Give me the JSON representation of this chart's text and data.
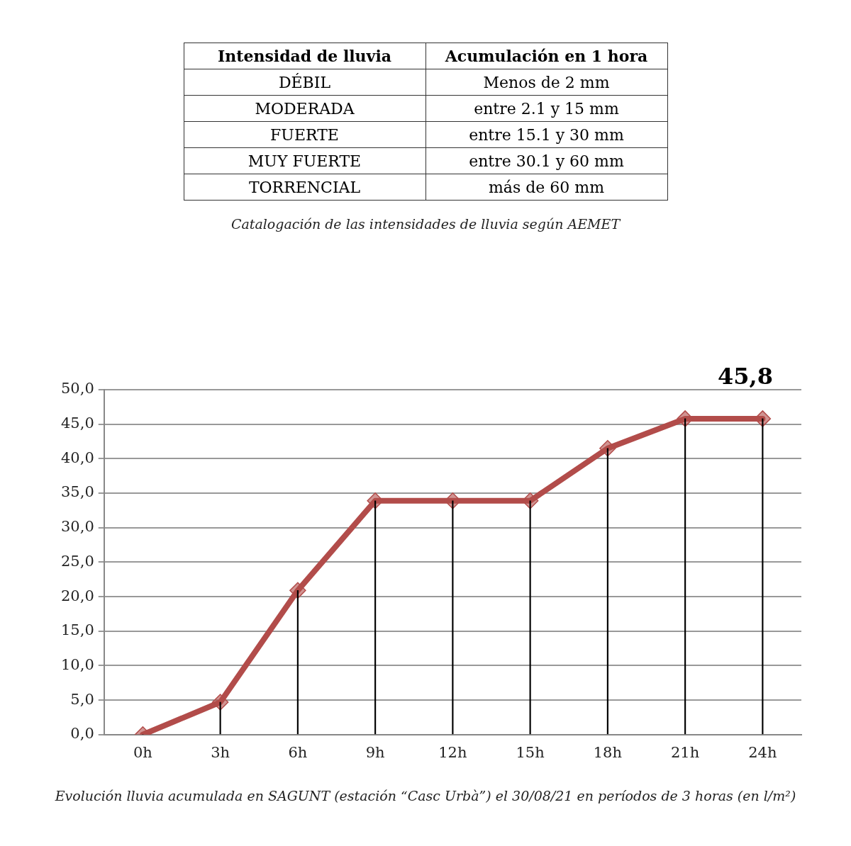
{
  "chart_data": [
    {
      "type": "other",
      "annotations": [
        "Intensidad de lluvia",
        "Acumulación en 1 hora",
        "DÉBIL",
        "Menos de 2 mm",
        "MODERADA",
        "entre 2.1 y 15 mm",
        "FUERTE",
        "entre 15.1 y 30 mm",
        "MUY FUERTE",
        "entre 30.1 y 60 mm",
        "TORRENCIAL",
        "más de 60 mm",
        "Catalogación de las intensidades de lluvia según AEMET"
      ]
    },
    {
      "type": "line",
      "categories": [
        "0h",
        "3h",
        "6h",
        "9h",
        "12h",
        "15h",
        "18h",
        "21h",
        "24h"
      ],
      "series": [
        {
          "type": "bar",
          "color": "#000000",
          "values": [
            0,
            4.7,
            20.9,
            33.9,
            33.9,
            33.9,
            41.5,
            45.8,
            45.8
          ]
        },
        {
          "color": "#b24c4a",
          "values": [
            0,
            4.7,
            20.9,
            33.9,
            33.9,
            33.9,
            41.5,
            45.8,
            45.8
          ]
        }
      ],
      "ylim": [
        0,
        50
      ],
      "yticks": [
        {
          "value": 0,
          "label": "0,0"
        },
        {
          "value": 5,
          "label": "5,0"
        },
        {
          "value": 10,
          "label": "10,0"
        },
        {
          "value": 15,
          "label": "15,0"
        },
        {
          "value": 20,
          "label": "20,0"
        },
        {
          "value": 25,
          "label": "25,0"
        },
        {
          "value": 30,
          "label": "30,0"
        },
        {
          "value": 35,
          "label": "35,0"
        },
        {
          "value": 40,
          "label": "40,0"
        },
        {
          "value": 45,
          "label": "45,0"
        },
        {
          "value": 50,
          "label": "50,0"
        }
      ],
      "grid": "y",
      "legend": false,
      "marker": "diamond",
      "line_style": "solid",
      "annotations": [
        "45,8",
        "Evolución lluvia acumulada en SAGUNT (estación “Casc Urbà”) el 30/08/21 en períodos de 3 horas (en l/m²)"
      ]
    }
  ]
}
